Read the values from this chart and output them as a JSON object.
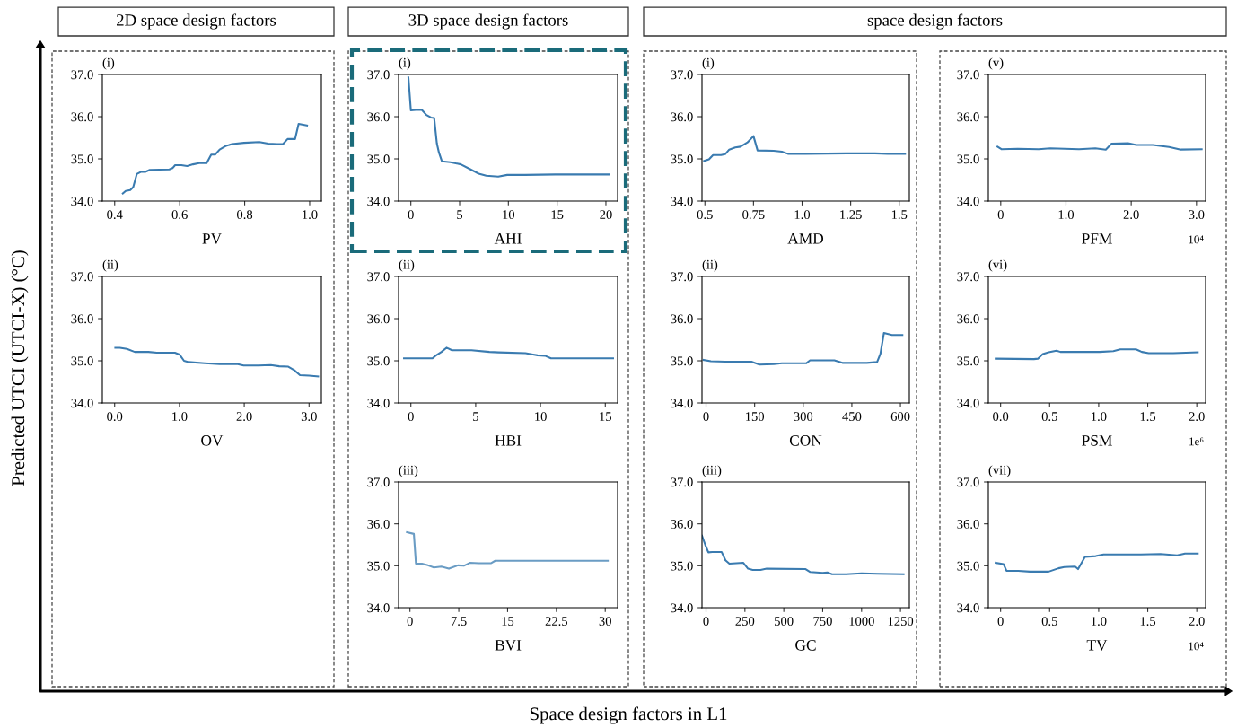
{
  "chart_data": [
    {
      "type": "line",
      "title": "2D space design factors",
      "ylabel": "Predicted UTCI (UTCI-X) (°C)",
      "xlabel": "PV",
      "annotations": [
        "(i)",
        "Space design factors in L1"
      ],
      "xlim": [
        0.362,
        1.036
      ],
      "xticks": [
        0.4,
        0.6,
        0.8,
        {
          "value": 1,
          "label": "1.0"
        }
      ],
      "ylim": [
        34,
        37
      ],
      "yticks": [
        {
          "value": 34,
          "label": "34.0"
        },
        {
          "value": 35,
          "label": "35.0"
        },
        {
          "value": 36,
          "label": "36.0"
        },
        {
          "value": 37,
          "label": "37.0"
        }
      ],
      "x": [
        0.425,
        0.434,
        0.448,
        0.457,
        0.468,
        0.48,
        0.494,
        0.508,
        0.568,
        0.578,
        0.586,
        0.605,
        0.623,
        0.641,
        0.66,
        0.683,
        0.697,
        0.709,
        0.723,
        0.743,
        0.761,
        0.798,
        0.845,
        0.872,
        0.9,
        0.918,
        0.932,
        0.955,
        0.966,
        0.992
      ],
      "series": [
        {
          "color": "#3a7bb0",
          "values": [
            34.18,
            34.24,
            34.26,
            34.33,
            34.64,
            34.69,
            34.69,
            34.74,
            34.75,
            34.78,
            34.85,
            34.85,
            34.83,
            34.87,
            34.9,
            34.9,
            35.1,
            35.1,
            35.22,
            35.31,
            35.35,
            35.38,
            35.4,
            35.36,
            35.35,
            35.35,
            35.47,
            35.47,
            35.83,
            35.79
          ]
        }
      ]
    },
    {
      "type": "line",
      "xlabel": "OV",
      "annotations": [
        "(ii)"
      ],
      "xlim": [
        -0.19,
        3.19
      ],
      "xticks": [
        {
          "value": 0,
          "label": "0.0"
        },
        {
          "value": 1,
          "label": "1.0"
        },
        {
          "value": 2,
          "label": "2.0"
        },
        {
          "value": 3,
          "label": "3.0"
        }
      ],
      "ylim": [
        34,
        37
      ],
      "yticks": [
        {
          "value": 34,
          "label": "34.0"
        },
        {
          "value": 35,
          "label": "35.0"
        },
        {
          "value": 36,
          "label": "36.0"
        },
        {
          "value": 37,
          "label": "37.0"
        }
      ],
      "x": [
        0.01,
        0.08,
        0.19,
        0.31,
        0.52,
        0.65,
        0.93,
        1.0,
        1.07,
        1.14,
        1.39,
        1.62,
        1.9,
        1.99,
        2.22,
        2.41,
        2.54,
        2.68,
        2.77,
        2.86,
        3.0,
        3.14
      ],
      "series": [
        {
          "color": "#3a7bb0",
          "values": [
            35.31,
            35.31,
            35.28,
            35.21,
            35.21,
            35.19,
            35.19,
            35.15,
            35.0,
            34.97,
            34.94,
            34.92,
            34.92,
            34.89,
            34.89,
            34.9,
            34.87,
            34.86,
            34.78,
            34.66,
            34.65,
            34.63
          ]
        }
      ]
    },
    {
      "type": "line",
      "title": "3D space design factors",
      "xlabel": "AHI",
      "annotations": [
        "(i)"
      ],
      "xlim": [
        -1.26,
        21.2
      ],
      "xticks": [
        0,
        5,
        10,
        15,
        20
      ],
      "ylim": [
        34,
        37
      ],
      "yticks": [
        {
          "value": 34,
          "label": "34.0"
        },
        {
          "value": 35,
          "label": "35.0"
        },
        {
          "value": 36,
          "label": "36.0"
        },
        {
          "value": 37,
          "label": "37.0"
        }
      ],
      "x": [
        -0.25,
        0.0,
        0.52,
        1.13,
        1.6,
        2.06,
        2.39,
        2.67,
        2.88,
        3.19,
        4.05,
        5.12,
        6.04,
        6.96,
        7.73,
        8.96,
        9.88,
        11.7,
        14.8,
        20.3
      ],
      "series": [
        {
          "color": "#3a7bb0",
          "values": [
            36.93,
            36.15,
            36.16,
            36.16,
            36.04,
            35.98,
            35.97,
            35.36,
            35.15,
            34.94,
            34.92,
            34.87,
            34.76,
            34.65,
            34.6,
            34.58,
            34.62,
            34.62,
            34.63,
            34.63
          ]
        }
      ]
    },
    {
      "type": "line",
      "xlabel": "HBI",
      "annotations": [
        "(ii)"
      ],
      "xlim": [
        -0.95,
        15.95
      ],
      "xticks": [
        0,
        5,
        10,
        15
      ],
      "ylim": [
        34,
        37
      ],
      "yticks": [
        {
          "value": 34,
          "label": "34.0"
        },
        {
          "value": 35,
          "label": "35.0"
        },
        {
          "value": 36,
          "label": "36.0"
        },
        {
          "value": 37,
          "label": "37.0"
        }
      ],
      "x": [
        -0.53,
        1.67,
        1.9,
        2.36,
        2.75,
        3.17,
        4.68,
        6.06,
        6.76,
        8.84,
        9.42,
        9.77,
        10.35,
        10.81,
        12.3,
        15.6
      ],
      "series": [
        {
          "color": "#3a7bb0",
          "values": [
            35.06,
            35.06,
            35.12,
            35.21,
            35.31,
            35.25,
            35.25,
            35.21,
            35.2,
            35.18,
            35.15,
            35.13,
            35.12,
            35.06,
            35.06,
            35.06
          ]
        }
      ]
    },
    {
      "type": "line",
      "xlabel": "BVI",
      "annotations": [
        "(iii)"
      ],
      "xlim": [
        -1.75,
        31.9
      ],
      "xticks": [
        0,
        7.5,
        15,
        22.5,
        30
      ],
      "ylim": [
        34,
        37
      ],
      "yticks": [
        {
          "value": 34,
          "label": "34.0"
        },
        {
          "value": 35,
          "label": "35.0"
        },
        {
          "value": 36,
          "label": "36.0"
        },
        {
          "value": 37,
          "label": "37.0"
        }
      ],
      "x": [
        -0.46,
        0.6,
        0.92,
        1.84,
        2.76,
        3.68,
        4.83,
        5.98,
        7.36,
        8.28,
        9.2,
        10.58,
        12.42,
        13.1,
        22.3,
        30.4
      ],
      "series": [
        {
          "color": "#6a9cc4",
          "values": [
            35.8,
            35.76,
            35.05,
            35.05,
            35.01,
            34.96,
            34.98,
            34.93,
            35.01,
            35.0,
            35.07,
            35.06,
            35.06,
            35.12,
            35.12,
            35.12
          ]
        }
      ]
    },
    {
      "type": "line",
      "title": "space design factors",
      "xlabel": "AMD",
      "annotations": [
        "(i)"
      ],
      "xlim": [
        0.485,
        1.552
      ],
      "xticks": [
        0.5,
        0.75,
        {
          "value": 1,
          "label": "1.0"
        },
        1.25,
        1.5
      ],
      "ylim": [
        34,
        37
      ],
      "yticks": [
        {
          "value": 34,
          "label": "34.0"
        },
        {
          "value": 35,
          "label": "35.0"
        },
        {
          "value": 36,
          "label": "36.0"
        },
        {
          "value": 37,
          "label": "37.0"
        }
      ],
      "x": [
        0.496,
        0.521,
        0.542,
        0.583,
        0.604,
        0.625,
        0.656,
        0.683,
        0.719,
        0.75,
        0.771,
        0.854,
        0.896,
        0.927,
        1.02,
        1.23,
        1.375,
        1.44,
        1.53
      ],
      "series": [
        {
          "color": "#3a7bb0",
          "values": [
            34.95,
            34.99,
            35.09,
            35.09,
            35.11,
            35.22,
            35.27,
            35.29,
            35.39,
            35.54,
            35.2,
            35.19,
            35.17,
            35.12,
            35.12,
            35.13,
            35.13,
            35.12,
            35.12
          ]
        }
      ]
    },
    {
      "type": "line",
      "xlabel": "CON",
      "annotations": [
        "(ii)"
      ],
      "xlim": [
        -12.5,
        627.5
      ],
      "xticks": [
        0,
        150,
        300,
        450,
        600
      ],
      "ylim": [
        34,
        37
      ],
      "yticks": [
        {
          "value": 34,
          "label": "34.0"
        },
        {
          "value": 35,
          "label": "35.0"
        },
        {
          "value": 36,
          "label": "36.0"
        },
        {
          "value": 37,
          "label": "37.0"
        }
      ],
      "x": [
        -7.5,
        15,
        59,
        140,
        165,
        209,
        234,
        309,
        321,
        396,
        421,
        496,
        528,
        538,
        549,
        574,
        606
      ],
      "series": [
        {
          "color": "#3a7bb0",
          "values": [
            35.02,
            34.99,
            34.98,
            34.98,
            34.91,
            34.92,
            34.94,
            34.94,
            35.01,
            35.01,
            34.95,
            34.95,
            34.97,
            35.16,
            35.66,
            35.61,
            35.61
          ]
        }
      ]
    },
    {
      "type": "line",
      "xlabel": "GC",
      "annotations": [
        "(iii)"
      ],
      "xlim": [
        -26,
        1307
      ],
      "xticks": [
        0,
        250,
        500,
        750,
        1000,
        1250
      ],
      "ylim": [
        34,
        37
      ],
      "yticks": [
        {
          "value": 34,
          "label": "34.0"
        },
        {
          "value": 35,
          "label": "35.0"
        },
        {
          "value": 36,
          "label": "36.0"
        },
        {
          "value": 37,
          "label": "37.0"
        }
      ],
      "x": [
        -26,
        -5,
        15,
        40,
        100,
        125,
        150,
        240,
        270,
        300,
        350,
        390,
        640,
        670,
        750,
        780,
        810,
        900,
        1000,
        1100,
        1270
      ],
      "series": [
        {
          "color": "#3a7bb0",
          "values": [
            35.72,
            35.5,
            35.32,
            35.33,
            35.33,
            35.13,
            35.05,
            35.07,
            34.93,
            34.9,
            34.9,
            34.93,
            34.92,
            34.85,
            34.83,
            34.84,
            34.8,
            34.8,
            34.82,
            34.81,
            34.8
          ]
        }
      ]
    },
    {
      "type": "line",
      "xlabel": "PFM",
      "annotations": [
        "(v)",
        "10⁴"
      ],
      "xlim": [
        -0.19,
        3.14
      ],
      "xticks": [
        0,
        {
          "value": 1,
          "label": "1.0"
        },
        {
          "value": 2,
          "label": "2.0"
        },
        {
          "value": 3,
          "label": "3.0"
        }
      ],
      "ylim": [
        34,
        37
      ],
      "yticks": [
        {
          "value": 34,
          "label": "34.0"
        },
        {
          "value": 35,
          "label": "35.0"
        },
        {
          "value": 36,
          "label": "36.0"
        },
        {
          "value": 37,
          "label": "37.0"
        }
      ],
      "x": [
        -0.05,
        0.01,
        0.26,
        0.58,
        0.76,
        1.2,
        1.45,
        1.61,
        1.7,
        1.95,
        2.08,
        2.33,
        2.58,
        2.76,
        3.08
      ],
      "series": [
        {
          "color": "#3a7bb0",
          "values": [
            35.29,
            35.23,
            35.24,
            35.23,
            35.25,
            35.23,
            35.25,
            35.22,
            35.36,
            35.37,
            35.33,
            35.33,
            35.28,
            35.22,
            35.23
          ]
        }
      ]
    },
    {
      "type": "line",
      "xlabel": "PSM",
      "annotations": [
        "(vi)",
        "1e⁶"
      ],
      "xlim": [
        -0.125,
        2.09
      ],
      "xticks": [
        {
          "value": 0,
          "label": "0.0"
        },
        0.5,
        {
          "value": 1,
          "label": "1.0"
        },
        1.5,
        {
          "value": 2,
          "label": "2.0"
        }
      ],
      "ylim": [
        34,
        37
      ],
      "yticks": [
        {
          "value": 34,
          "label": "34.0"
        },
        {
          "value": 35,
          "label": "35.0"
        },
        {
          "value": 36,
          "label": "36.0"
        },
        {
          "value": 37,
          "label": "37.0"
        }
      ],
      "x": [
        -0.05,
        0.34,
        0.38,
        0.43,
        0.49,
        0.57,
        0.61,
        1.01,
        1.15,
        1.22,
        1.38,
        1.44,
        1.51,
        1.76,
        2.01
      ],
      "series": [
        {
          "color": "#3a7bb0",
          "values": [
            35.05,
            35.04,
            35.05,
            35.16,
            35.2,
            35.24,
            35.21,
            35.21,
            35.23,
            35.27,
            35.27,
            35.21,
            35.18,
            35.18,
            35.2
          ]
        }
      ]
    },
    {
      "type": "line",
      "xlabel": "TV",
      "annotations": [
        "(vii)",
        "10⁴"
      ],
      "xlim": [
        -0.125,
        2.09
      ],
      "xticks": [
        0,
        0.5,
        {
          "value": 1,
          "label": "1.0"
        },
        1.5,
        {
          "value": 2,
          "label": "2.0"
        }
      ],
      "ylim": [
        34,
        37
      ],
      "yticks": [
        {
          "value": 34,
          "label": "34.0"
        },
        {
          "value": 35,
          "label": "35.0"
        },
        {
          "value": 36,
          "label": "36.0"
        },
        {
          "value": 37,
          "label": "37.0"
        }
      ],
      "x": [
        -0.05,
        0.03,
        0.06,
        0.18,
        0.3,
        0.49,
        0.59,
        0.65,
        0.76,
        0.79,
        0.86,
        0.97,
        1.05,
        1.43,
        1.63,
        1.8,
        1.88,
        2.01
      ],
      "series": [
        {
          "color": "#3a7bb0",
          "values": [
            35.07,
            35.04,
            34.88,
            34.88,
            34.86,
            34.86,
            34.94,
            34.97,
            34.98,
            34.92,
            35.21,
            35.23,
            35.27,
            35.27,
            35.28,
            35.25,
            35.29,
            35.29
          ]
        }
      ]
    }
  ]
}
